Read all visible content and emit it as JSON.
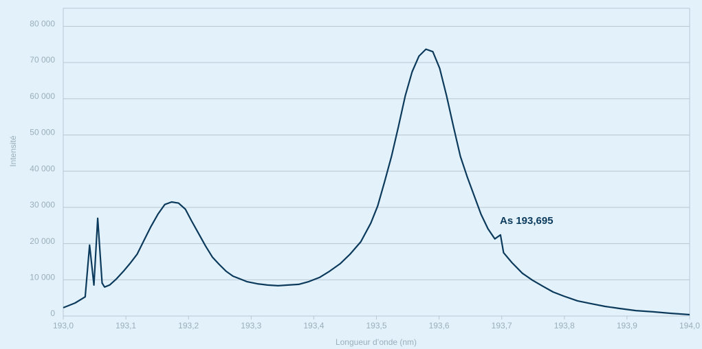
{
  "chart_data": {
    "type": "line",
    "xlabel": "Longueur d’onde (nm)",
    "ylabel": "Intensité",
    "annotation": "As 193,695",
    "color": "#0b3a5c",
    "grid": true,
    "x": [
      193.0,
      193.008,
      193.019,
      193.035,
      193.042,
      193.049,
      193.055,
      193.062,
      193.066,
      193.074,
      193.085,
      193.096,
      193.107,
      193.118,
      193.129,
      193.14,
      193.151,
      193.162,
      193.173,
      193.184,
      193.195,
      193.205,
      193.216,
      193.227,
      193.238,
      193.249,
      193.26,
      193.271,
      193.282,
      193.293,
      193.31,
      193.326,
      193.343,
      193.359,
      193.376,
      193.392,
      193.409,
      193.425,
      193.442,
      193.458,
      193.475,
      193.491,
      193.502,
      193.513,
      193.524,
      193.535,
      193.546,
      193.557,
      193.568,
      193.579,
      193.59,
      193.601,
      193.612,
      193.623,
      193.634,
      193.645,
      193.656,
      193.667,
      193.678,
      193.689,
      193.698,
      193.703,
      193.716,
      193.733,
      193.749,
      193.766,
      193.782,
      193.799,
      193.821,
      193.843,
      193.865,
      193.887,
      193.914,
      193.942,
      193.969,
      194.0
    ],
    "values": [
      2300,
      2850,
      3600,
      5300,
      19600,
      8550,
      27000,
      9100,
      8000,
      8550,
      10260,
      12350,
      14600,
      17100,
      20900,
      24700,
      28100,
      30800,
      31500,
      31200,
      29500,
      26200,
      22800,
      19400,
      16300,
      14250,
      12350,
      11000,
      10260,
      9500,
      8900,
      8550,
      8360,
      8550,
      8740,
      9500,
      10640,
      12350,
      14440,
      17100,
      20500,
      25650,
      30400,
      37050,
      44100,
      52250,
      60800,
      67450,
      71800,
      73700,
      73000,
      68400,
      60800,
      52250,
      44100,
      38400,
      33250,
      28100,
      24100,
      21300,
      22400,
      17500,
      14800,
      11800,
      9900,
      8200,
      6650,
      5500,
      4200,
      3400,
      2650,
      2100,
      1500,
      1150,
      760,
      380
    ],
    "xlim": [
      193.0,
      194.0
    ],
    "xticks": [
      {
        "value": 193.0,
        "label": "193,0"
      },
      {
        "value": 193.1,
        "label": "193,1"
      },
      {
        "value": 193.2,
        "label": "193,2"
      },
      {
        "value": 193.3,
        "label": "193,3"
      },
      {
        "value": 193.4,
        "label": "193,4"
      },
      {
        "value": 193.5,
        "label": "193,5"
      },
      {
        "value": 193.6,
        "label": "193,6"
      },
      {
        "value": 193.7,
        "label": "193,7"
      },
      {
        "value": 193.8,
        "label": "193,8"
      },
      {
        "value": 193.9,
        "label": "193,9"
      },
      {
        "value": 194.0,
        "label": "194,0"
      }
    ],
    "ylim": [
      0,
      85000
    ],
    "yticks": [
      0,
      {
        "value": 10000,
        "label": "10 000"
      },
      {
        "value": 20000,
        "label": "20 000"
      },
      {
        "value": 30000,
        "label": "30 000"
      },
      {
        "value": 40000,
        "label": "40 000"
      },
      {
        "value": 50000,
        "label": "50 000"
      },
      {
        "value": 60000,
        "label": "60 000"
      },
      {
        "value": 70000,
        "label": "70 000"
      },
      {
        "value": 80000,
        "label": "80 000"
      }
    ]
  }
}
